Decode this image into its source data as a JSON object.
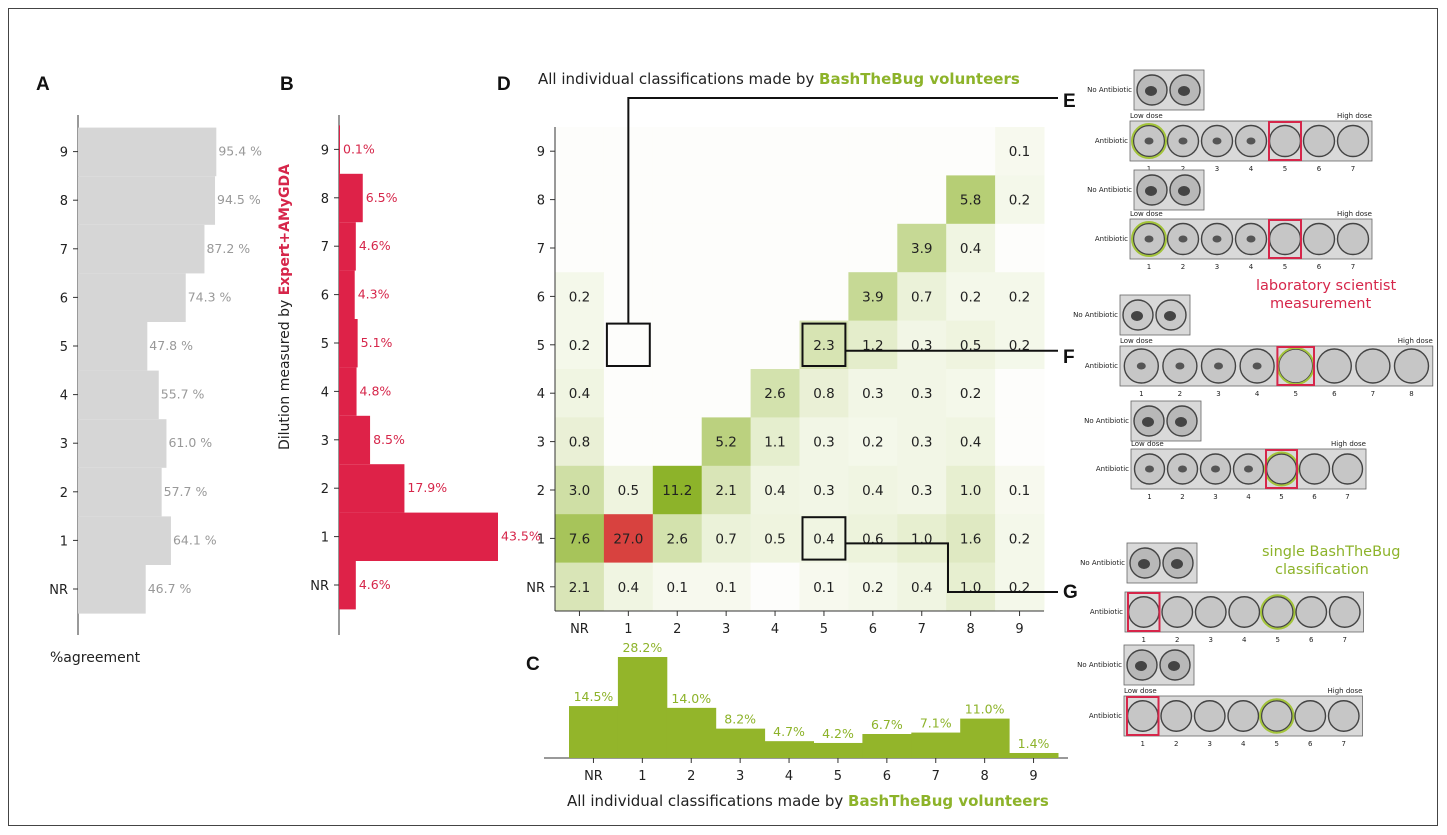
{
  "panel_letters": {
    "a": "A",
    "b": "B",
    "c": "C",
    "d": "D",
    "e": "E",
    "f": "F",
    "g": "G"
  },
  "colors": {
    "grey_bar": "#d6d6d6",
    "red_bar": "#de2248",
    "green_bar": "#93b52a",
    "box_red": "#d6264a",
    "box_green": "#a3c43a",
    "heat_low": "#fbfcf6",
    "heat_high": "#8db32a",
    "heat_special": "#d8423f"
  },
  "chart_data": [
    {
      "id": "A",
      "type": "bar",
      "orientation": "horizontal",
      "categories": [
        "NR",
        "1",
        "2",
        "3",
        "4",
        "5",
        "6",
        "7",
        "8",
        "9"
      ],
      "values": [
        46.7,
        64.1,
        57.7,
        61.0,
        55.7,
        47.8,
        74.3,
        87.2,
        94.5,
        95.4
      ],
      "value_labels": [
        "46.7 %",
        "64.1 %",
        "57.7 %",
        "61.0 %",
        "55.7 %",
        "47.8 %",
        "74.3 %",
        "87.2 %",
        "94.5 %",
        "95.4 %"
      ],
      "xlabel": "%agreement"
    },
    {
      "id": "B",
      "type": "bar",
      "orientation": "horizontal",
      "categories": [
        "NR",
        "1",
        "2",
        "3",
        "4",
        "5",
        "6",
        "7",
        "8",
        "9"
      ],
      "values": [
        4.6,
        43.5,
        17.9,
        8.5,
        4.8,
        5.1,
        4.3,
        4.6,
        6.5,
        0.1
      ],
      "value_labels": [
        "4.6%",
        "43.5%",
        "17.9%",
        "8.5%",
        "4.8%",
        "5.1%",
        "4.3%",
        "4.6%",
        "6.5%",
        "0.1%"
      ],
      "ylabel_prefix": "Dilution measured by ",
      "ylabel_highlight": "Expert+AMyGDA"
    },
    {
      "id": "C",
      "type": "bar",
      "categories": [
        "NR",
        "1",
        "2",
        "3",
        "4",
        "5",
        "6",
        "7",
        "8",
        "9"
      ],
      "values": [
        14.5,
        28.2,
        14.0,
        8.2,
        4.7,
        4.2,
        6.7,
        7.1,
        11.0,
        1.4
      ],
      "value_labels": [
        "14.5%",
        "28.2%",
        "14.0%",
        "8.2%",
        "4.7%",
        "4.2%",
        "6.7%",
        "7.1%",
        "11.0%",
        "1.4%"
      ],
      "xlabel_prefix": "All individual classifications made by ",
      "xlabel_highlight": "BashTheBug volunteers"
    },
    {
      "id": "D",
      "type": "heatmap",
      "title_prefix": "All individual classifications made by ",
      "title_highlight": "BashTheBug volunteers",
      "x_categories": [
        "NR",
        "1",
        "2",
        "3",
        "4",
        "5",
        "6",
        "7",
        "8",
        "9"
      ],
      "y_categories": [
        "NR",
        "1",
        "2",
        "3",
        "4",
        "5",
        "6",
        "7",
        "8",
        "9"
      ],
      "cells": [
        {
          "row": "9",
          "values": [
            "",
            "",
            "",
            "",
            "",
            "",
            "",
            "",
            "",
            "0.1"
          ]
        },
        {
          "row": "8",
          "values": [
            "",
            "",
            "",
            "",
            "",
            "",
            "",
            "",
            "5.8",
            "0.2"
          ]
        },
        {
          "row": "7",
          "values": [
            "",
            "",
            "",
            "",
            "",
            "",
            "",
            "3.9",
            "0.4",
            ""
          ]
        },
        {
          "row": "6",
          "values": [
            "0.2",
            "",
            "",
            "",
            "",
            "",
            "3.9",
            "0.7",
            "0.2",
            "0.2"
          ]
        },
        {
          "row": "5",
          "values": [
            "0.2",
            "",
            "",
            "",
            "",
            "2.3",
            "1.2",
            "0.3",
            "0.5",
            "0.2"
          ]
        },
        {
          "row": "4",
          "values": [
            "0.4",
            "",
            "",
            "",
            "2.6",
            "0.8",
            "0.3",
            "0.3",
            "0.2",
            ""
          ]
        },
        {
          "row": "3",
          "values": [
            "0.8",
            "",
            "",
            "5.2",
            "1.1",
            "0.3",
            "0.2",
            "0.3",
            "0.4",
            ""
          ]
        },
        {
          "row": "2",
          "values": [
            "3.0",
            "0.5",
            "11.2",
            "2.1",
            "0.4",
            "0.3",
            "0.4",
            "0.3",
            "1.0",
            "0.1"
          ]
        },
        {
          "row": "1",
          "values": [
            "7.6",
            "27.0",
            "2.6",
            "0.7",
            "0.5",
            "0.4",
            "0.6",
            "1.0",
            "1.6",
            "0.2"
          ]
        },
        {
          "row": "NR",
          "values": [
            "2.1",
            "0.4",
            "0.1",
            "0.1",
            "",
            "0.1",
            "0.2",
            "0.4",
            "1.0",
            "0.2"
          ]
        }
      ],
      "highlighted_cells": [
        {
          "row": "5",
          "col": "1",
          "points_to": "E"
        },
        {
          "row": "5",
          "col": "5",
          "points_to": "F"
        },
        {
          "row": "1",
          "col": "5",
          "points_to": "G"
        }
      ]
    }
  ],
  "plates": {
    "no_antibiotic": "No Antibiotic",
    "antibiotic": "Antibiotic",
    "low_dose": "Low dose",
    "high_dose": "High dose",
    "note_red_line1": "laboratory scientist",
    "note_red_line2": "measurement",
    "note_green_line1": "single BashTheBug",
    "note_green_line2": "classification",
    "examples": [
      {
        "panel": "E",
        "wells": [
          "1",
          "2",
          "3",
          "4",
          "5",
          "6",
          "7"
        ],
        "green_well": 1,
        "red_well": 5
      },
      {
        "panel": "E",
        "wells": [
          "1",
          "2",
          "3",
          "4",
          "5",
          "6",
          "7"
        ],
        "green_well": 1,
        "red_well": 5
      },
      {
        "panel": "F",
        "wells": [
          "1",
          "2",
          "3",
          "4",
          "5",
          "6",
          "7",
          "8"
        ],
        "green_well": 5,
        "red_well": 5
      },
      {
        "panel": "F",
        "wells": [
          "1",
          "2",
          "3",
          "4",
          "5",
          "6",
          "7"
        ],
        "green_well": 5,
        "red_well": 5
      },
      {
        "panel": "G",
        "wells": [
          "1",
          "2",
          "3",
          "4",
          "5",
          "6",
          "7"
        ],
        "green_well": 5,
        "red_well": 1
      },
      {
        "panel": "G",
        "wells": [
          "1",
          "2",
          "3",
          "4",
          "5",
          "6",
          "7"
        ],
        "green_well": 5,
        "red_well": 1
      }
    ]
  }
}
